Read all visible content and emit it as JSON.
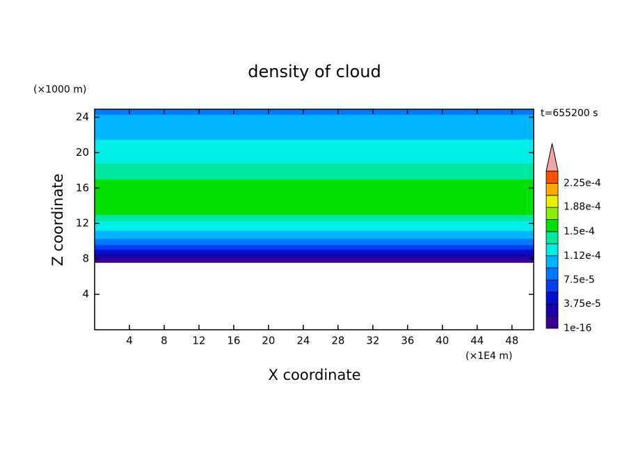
{
  "chart_data": {
    "type": "contour",
    "title": "density of cloud",
    "y_unit": "(×1000 m)",
    "x_unit": "(×1E4 m)",
    "time_label": "t=655200 s",
    "x_label": "X coordinate",
    "y_label": "Z coordinate",
    "xlim": [
      0,
      50.5
    ],
    "ylim": [
      0,
      24.9
    ],
    "xticks": [
      4,
      8,
      12,
      16,
      20,
      24,
      28,
      32,
      36,
      40,
      44,
      48
    ],
    "yticks": [
      4,
      8,
      12,
      16,
      20,
      24
    ],
    "profile": {
      "z_bins": [
        7.6,
        8.1,
        8.6,
        9.1,
        9.6,
        10.3,
        11.2,
        12.3,
        13,
        17,
        18.8,
        20.2,
        21.5,
        23.2,
        24.3,
        24.9
      ],
      "values": [
        1e-05,
        2.8e-05,
        4.6e-05,
        6.5e-05,
        8.4e-05,
        0.000102,
        0.00012,
        0.00014,
        0.000155,
        0.00014,
        0.000125,
        0.00012,
        0.000104,
        0.000102,
        8.5e-05
      ]
    },
    "colorbar": {
      "levels": [
        1e-16,
        1.875e-05,
        3.75e-05,
        5.625e-05,
        7.5e-05,
        9.375e-05,
        0.0001125,
        0.00013125,
        0.00015,
        0.00016875,
        0.0001875,
        0.00020625,
        0.000225,
        0.00024375
      ],
      "colors": [
        "#3c0096",
        "#1a00a8",
        "#0010d0",
        "#0040f0",
        "#0078ff",
        "#00b4ff",
        "#00eee8",
        "#00e8a0",
        "#00e000",
        "#88f000",
        "#e8f000",
        "#ffa800",
        "#ff5000"
      ],
      "extend_color": "#f4a4a4",
      "ticks": [
        1e-16,
        {
          "value": 3.75e-05,
          "label": "3.75e-5"
        },
        {
          "value": 7.5e-05,
          "label": "7.5e-5"
        },
        {
          "value": 0.000112,
          "label": "1.12e-4"
        },
        {
          "value": 0.00015,
          "label": "1.5e-4"
        },
        {
          "value": 0.000188,
          "label": "1.88e-4"
        },
        {
          "value": 0.000225,
          "label": "2.25e-4"
        }
      ]
    }
  }
}
